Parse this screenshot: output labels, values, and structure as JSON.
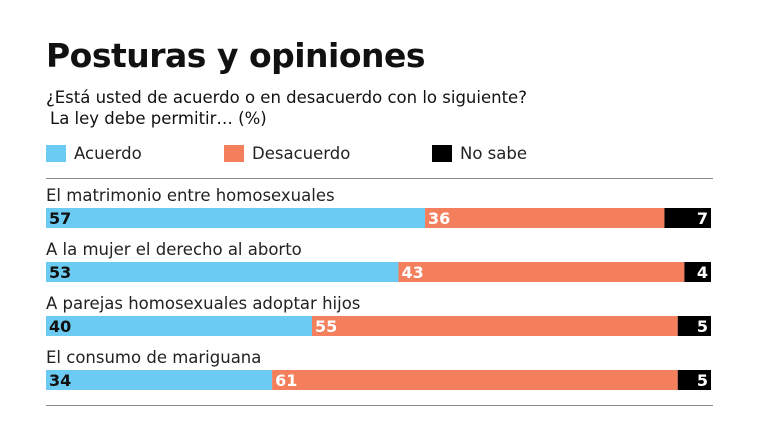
{
  "header": {
    "title": "Posturas y opiniones",
    "subtitle": "¿Está usted de acuerdo o en desacuerdo con lo siguiente?",
    "subtitle2": "La ley debe permitir… (%)"
  },
  "legend": [
    {
      "label": "Acuerdo",
      "color": "#6ccbf2"
    },
    {
      "label": "Desacuerdo",
      "color": "#f47f5c"
    },
    {
      "label": "No sabe",
      "color": "#000000"
    }
  ],
  "chart_data": {
    "type": "bar",
    "orientation": "horizontal-stacked",
    "categories": [
      "El matrimonio entre homosexuales",
      "A la mujer el derecho al aborto",
      "A parejas homosexuales adoptar hijos",
      "El consumo de mariguana"
    ],
    "series": [
      {
        "name": "Acuerdo",
        "color": "#6ccbf2",
        "label_color": "#111111",
        "values": [
          57,
          53,
          40,
          34
        ]
      },
      {
        "name": "Desacuerdo",
        "color": "#f47f5c",
        "label_color": "#ffffff",
        "values": [
          36,
          43,
          55,
          61
        ]
      },
      {
        "name": "No sabe",
        "color": "#000000",
        "label_color": "#ffffff",
        "values": [
          7,
          4,
          5,
          5
        ]
      }
    ],
    "xlim": [
      0,
      100
    ],
    "grid": false,
    "legend_position": "top"
  }
}
